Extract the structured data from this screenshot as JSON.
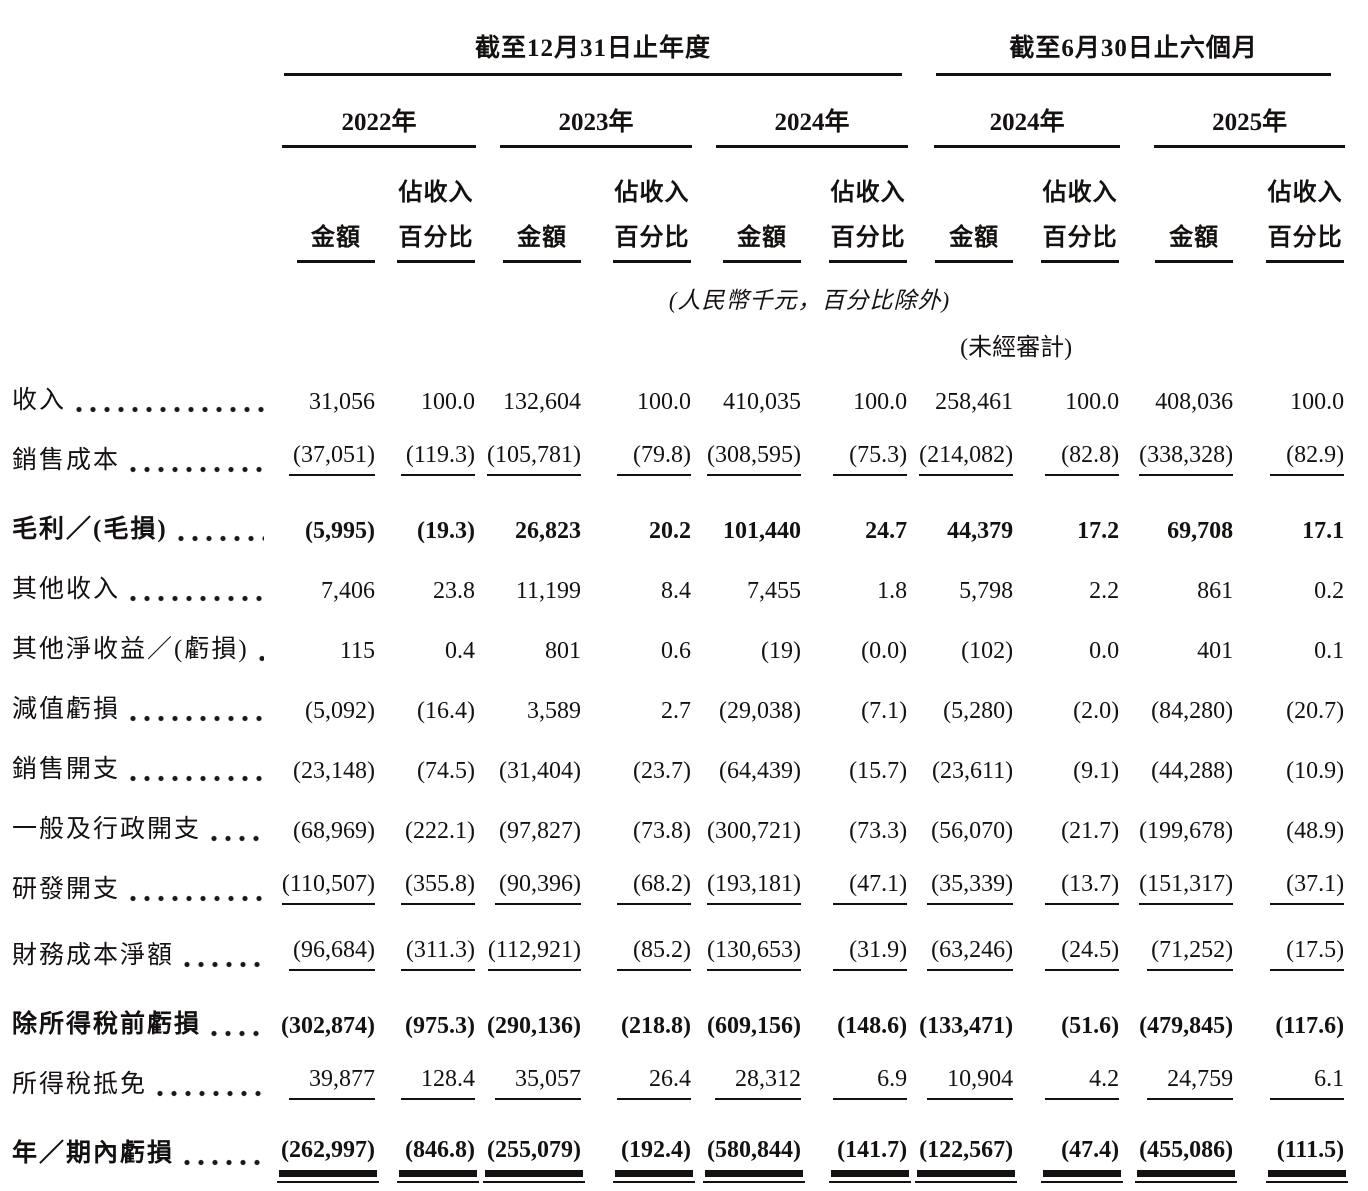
{
  "colors": {
    "text": "#141110",
    "background": "#ffffff",
    "rule": "#141110"
  },
  "header": {
    "annual_period": "截至12月31日止年度",
    "interim_period": "截至6月30日止六個月",
    "years": [
      "2022年",
      "2023年",
      "2024年",
      "2024年",
      "2025年"
    ],
    "amount_label": "金額",
    "pct_line1": "佔收入",
    "pct_line2": "百分比",
    "units_note": "(人民幣千元，百分比除外)",
    "unaudited_note": "(未經審計)"
  },
  "table": {
    "column_structure": "每個年度╱期間兩欄：金額、佔收入百分比",
    "rows": [
      {
        "label": "收入",
        "bold": false,
        "underline": "none",
        "values": [
          "31,056",
          "100.0",
          "132,604",
          "100.0",
          "410,035",
          "100.0",
          "258,461",
          "100.0",
          "408,036",
          "100.0"
        ]
      },
      {
        "label": "銷售成本",
        "bold": false,
        "underline": "single",
        "values": [
          "(37,051)",
          "(119.3)",
          "(105,781)",
          "(79.8)",
          "(308,595)",
          "(75.3)",
          "(214,082)",
          "(82.8)",
          "(338,328)",
          "(82.9)"
        ]
      },
      {
        "label": "毛利／(毛損)",
        "bold": true,
        "underline": "none",
        "values": [
          "(5,995)",
          "(19.3)",
          "26,823",
          "20.2",
          "101,440",
          "24.7",
          "44,379",
          "17.2",
          "69,708",
          "17.1"
        ]
      },
      {
        "label": "其他收入",
        "bold": false,
        "underline": "none",
        "values": [
          "7,406",
          "23.8",
          "11,199",
          "8.4",
          "7,455",
          "1.8",
          "5,798",
          "2.2",
          "861",
          "0.2"
        ]
      },
      {
        "label": "其他淨收益／(虧損)",
        "bold": false,
        "underline": "none",
        "values": [
          "115",
          "0.4",
          "801",
          "0.6",
          "(19)",
          "(0.0)",
          "(102)",
          "0.0",
          "401",
          "0.1"
        ]
      },
      {
        "label": "減值虧損",
        "bold": false,
        "underline": "none",
        "values": [
          "(5,092)",
          "(16.4)",
          "3,589",
          "2.7",
          "(29,038)",
          "(7.1)",
          "(5,280)",
          "(2.0)",
          "(84,280)",
          "(20.7)"
        ]
      },
      {
        "label": "銷售開支",
        "bold": false,
        "underline": "none",
        "values": [
          "(23,148)",
          "(74.5)",
          "(31,404)",
          "(23.7)",
          "(64,439)",
          "(15.7)",
          "(23,611)",
          "(9.1)",
          "(44,288)",
          "(10.9)"
        ]
      },
      {
        "label": "一般及行政開支",
        "bold": false,
        "underline": "none",
        "values": [
          "(68,969)",
          "(222.1)",
          "(97,827)",
          "(73.8)",
          "(300,721)",
          "(73.3)",
          "(56,070)",
          "(21.7)",
          "(199,678)",
          "(48.9)"
        ]
      },
      {
        "label": "研發開支",
        "bold": false,
        "underline": "single",
        "values": [
          "(110,507)",
          "(355.8)",
          "(90,396)",
          "(68.2)",
          "(193,181)",
          "(47.1)",
          "(35,339)",
          "(13.7)",
          "(151,317)",
          "(37.1)"
        ]
      },
      {
        "label": "財務成本淨額",
        "bold": false,
        "underline": "single",
        "values": [
          "(96,684)",
          "(311.3)",
          "(112,921)",
          "(85.2)",
          "(130,653)",
          "(31.9)",
          "(63,246)",
          "(24.5)",
          "(71,252)",
          "(17.5)"
        ]
      },
      {
        "label": "除所得稅前虧損",
        "bold": true,
        "underline": "none",
        "values": [
          "(302,874)",
          "(975.3)",
          "(290,136)",
          "(218.8)",
          "(609,156)",
          "(148.6)",
          "(133,471)",
          "(51.6)",
          "(479,845)",
          "(117.6)"
        ]
      },
      {
        "label": "所得稅抵免",
        "bold": false,
        "underline": "single",
        "values": [
          "39,877",
          "128.4",
          "35,057",
          "26.4",
          "28,312",
          "6.9",
          "10,904",
          "4.2",
          "24,759",
          "6.1"
        ]
      },
      {
        "label": "年／期內虧損",
        "bold": true,
        "underline": "double",
        "values": [
          "(262,997)",
          "(846.8)",
          "(255,079)",
          "(192.4)",
          "(580,844)",
          "(141.7)",
          "(122,567)",
          "(47.4)",
          "(455,086)",
          "(111.5)"
        ]
      }
    ]
  }
}
